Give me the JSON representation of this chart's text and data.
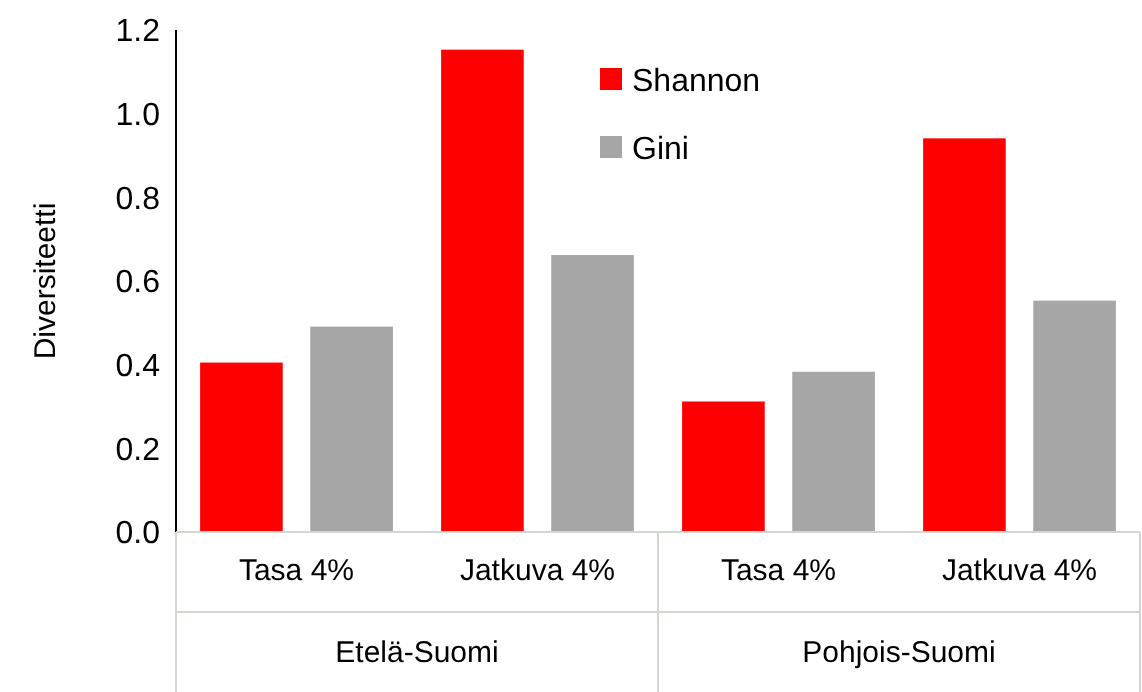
{
  "chart_data": {
    "type": "bar",
    "ylabel": "Diversiteetti",
    "categories": [
      "Tasa 4%",
      "Jatkuva 4%",
      "Tasa 4%",
      "Jatkuva 4%"
    ],
    "annotations": [
      "Etelä-Suomi",
      "Pohjois-Suomi"
    ],
    "series": [
      {
        "name": "Shannon",
        "color": "#ff0000",
        "values": [
          0.405,
          1.153,
          0.312,
          0.941
        ]
      },
      {
        "name": "Gini",
        "color": "#a6a6a6",
        "values": [
          0.491,
          0.662,
          0.383,
          0.553
        ]
      }
    ],
    "ylim": [
      0,
      1.2
    ],
    "yticks": [
      {
        "value": 0,
        "label": "0.0"
      },
      {
        "value": 0.2,
        "label": "0.2"
      },
      {
        "value": 0.4,
        "label": "0.4"
      },
      {
        "value": 0.6,
        "label": "0.6"
      },
      {
        "value": 0.8,
        "label": "0.8"
      },
      {
        "value": 1,
        "label": "1.0"
      },
      {
        "value": 1.2,
        "label": "1.2"
      }
    ],
    "grid": false,
    "legend": "top"
  }
}
